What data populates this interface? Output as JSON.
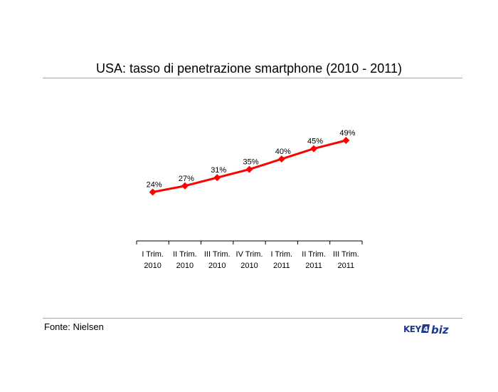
{
  "chart_data": {
    "type": "line",
    "title": "USA: tasso di penetrazione smartphone (2010 - 2011)",
    "categories": [
      [
        "I Trim.",
        "2010"
      ],
      [
        "II Trim.",
        "2010"
      ],
      [
        "III Trim.",
        "2010"
      ],
      [
        "IV Trim.",
        "2010"
      ],
      [
        "I Trim.",
        "2011"
      ],
      [
        "II Trim.",
        "2011"
      ],
      [
        "III Trim.",
        "2011"
      ]
    ],
    "values": [
      24,
      27,
      31,
      35,
      40,
      45,
      49
    ],
    "data_labels": [
      "24%",
      "27%",
      "31%",
      "35%",
      "40%",
      "45%",
      "49%"
    ],
    "line_color": "#ff0000",
    "marker": "diamond",
    "grid": false,
    "legend": "none",
    "xlabel": "",
    "ylabel": ""
  },
  "source": "Fonte: Nielsen",
  "logo": {
    "brand_left": "KEY",
    "digit": "4",
    "brand_right": "biz",
    "color": "#1f3a93"
  }
}
